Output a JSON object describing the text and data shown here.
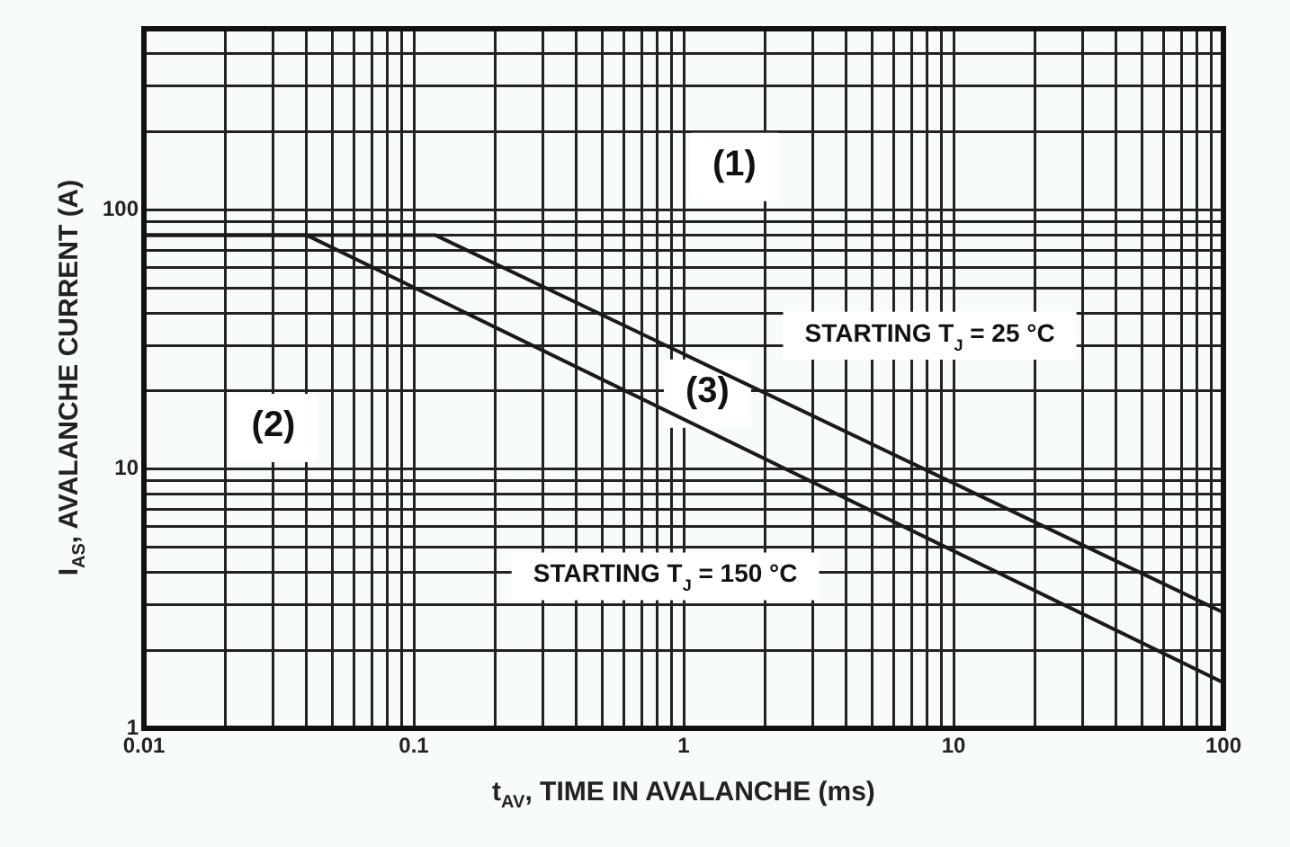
{
  "chart_data": {
    "type": "line",
    "xlabel": "t$_{AV}$, TIME IN AVALANCHE (ms)",
    "ylabel": "I$_{AS}$, AVALANCHE CURRENT (A)",
    "log": "xy",
    "grid": true,
    "legend": false,
    "marker": "none",
    "line_style": "solid",
    "xlim": [
      0.01,
      100
    ],
    "ylim": [
      1,
      500
    ],
    "xticks": [
      0.01,
      {
        "value": 0.02,
        "label": null
      },
      {
        "value": 0.03,
        "label": null
      },
      {
        "value": 0.04,
        "label": null
      },
      {
        "value": 0.05,
        "label": null
      },
      {
        "value": 0.06,
        "label": null
      },
      {
        "value": 0.07,
        "label": null
      },
      {
        "value": 0.08,
        "label": null
      },
      {
        "value": 0.09,
        "label": null
      },
      0.1,
      {
        "value": 0.2,
        "label": null
      },
      {
        "value": 0.3,
        "label": null
      },
      {
        "value": 0.4,
        "label": null
      },
      {
        "value": 0.5,
        "label": null
      },
      {
        "value": 0.6,
        "label": null
      },
      {
        "value": 0.7,
        "label": null
      },
      {
        "value": 0.8,
        "label": null
      },
      {
        "value": 0.9,
        "label": null
      },
      1,
      {
        "value": 2,
        "label": null
      },
      {
        "value": 3,
        "label": null
      },
      {
        "value": 4,
        "label": null
      },
      {
        "value": 5,
        "label": null
      },
      {
        "value": 6,
        "label": null
      },
      {
        "value": 7,
        "label": null
      },
      {
        "value": 8,
        "label": null
      },
      {
        "value": 9,
        "label": null
      },
      10,
      {
        "value": 20,
        "label": null
      },
      {
        "value": 30,
        "label": null
      },
      {
        "value": 40,
        "label": null
      },
      {
        "value": 50,
        "label": null
      },
      {
        "value": 60,
        "label": null
      },
      {
        "value": 70,
        "label": null
      },
      {
        "value": 80,
        "label": null
      },
      {
        "value": 90,
        "label": null
      },
      100
    ],
    "yticks": [
      1,
      {
        "value": 2,
        "label": null
      },
      {
        "value": 3,
        "label": null
      },
      {
        "value": 4,
        "label": null
      },
      {
        "value": 5,
        "label": null
      },
      {
        "value": 6,
        "label": null
      },
      {
        "value": 7,
        "label": null
      },
      {
        "value": 8,
        "label": null
      },
      {
        "value": 9,
        "label": null
      },
      10,
      {
        "value": 20,
        "label": null
      },
      {
        "value": 30,
        "label": null
      },
      {
        "value": 40,
        "label": null
      },
      {
        "value": 50,
        "label": null
      },
      {
        "value": 60,
        "label": null
      },
      {
        "value": 70,
        "label": null
      },
      {
        "value": 80,
        "label": null
      },
      {
        "value": 90,
        "label": null
      },
      100,
      {
        "value": 200,
        "label": null
      },
      {
        "value": 300,
        "label": null
      },
      {
        "value": 400,
        "label": null
      },
      {
        "value": 500,
        "label": null
      }
    ],
    "series": [
      {
        "name": "STARTING T$_{J}$ = 25 °C",
        "color": "#1a1a1a",
        "x": [
          0.01,
          0.12,
          100
        ],
        "values": [
          80,
          80,
          2.8
        ]
      },
      {
        "name": "STARTING T$_{J}$ = 150 °C",
        "color": "#1a1a1a",
        "x": [
          0.01,
          0.04,
          100
        ],
        "values": [
          80,
          80,
          1.5
        ]
      }
    ],
    "annotations": [
      "(1)",
      "(2)",
      "(3)"
    ]
  }
}
